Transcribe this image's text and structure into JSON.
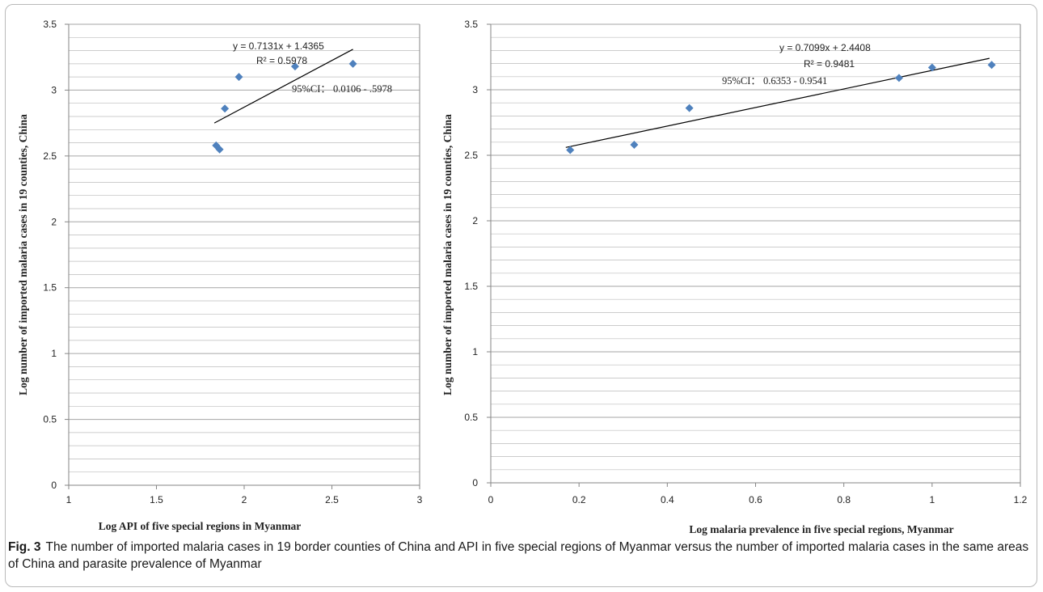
{
  "chart_data": [
    {
      "type": "scatter",
      "xlabel": "Log API of five special regions in Myanmar",
      "ylabel": "Log number of imported malaria cases in 19 counties, China",
      "xlim": [
        1,
        3
      ],
      "ylim": [
        0,
        3.5
      ],
      "x_ticks": [
        "1",
        "1.5",
        "2",
        "2.5",
        "3"
      ],
      "y_ticks": [
        "0",
        "0.5",
        "1",
        "1.5",
        "2",
        "2.5",
        "3",
        "3.5"
      ],
      "grid": true,
      "points": [
        {
          "x": 1.84,
          "y": 2.58
        },
        {
          "x": 1.86,
          "y": 2.55
        },
        {
          "x": 1.89,
          "y": 2.86
        },
        {
          "x": 1.97,
          "y": 3.1
        },
        {
          "x": 2.29,
          "y": 3.18
        },
        {
          "x": 2.62,
          "y": 3.2
        }
      ],
      "trendline": {
        "x": [
          1.83,
          2.62
        ],
        "y": [
          2.75,
          3.31
        ]
      },
      "annotations": [
        "y = 0.7131x + 1.4365",
        "R² = 0.5978",
        "95%CI：  0.0106 - .5978"
      ]
    },
    {
      "type": "scatter",
      "xlabel": "Log malaria prevalence in five special regions, Myanmar",
      "ylabel": "Log number of imported malaria cases in 19 counties, China",
      "xlim": [
        0,
        1.2
      ],
      "ylim": [
        0,
        3.5
      ],
      "x_ticks": [
        "0",
        "0.2",
        "0.4",
        "0.6",
        "0.8",
        "1",
        "1.2"
      ],
      "y_ticks": [
        "0",
        "0.5",
        "1",
        "1.5",
        "2",
        "2.5",
        "3",
        "3.5"
      ],
      "grid": true,
      "points": [
        {
          "x": 0.18,
          "y": 2.54
        },
        {
          "x": 0.325,
          "y": 2.58
        },
        {
          "x": 0.45,
          "y": 2.86
        },
        {
          "x": 0.925,
          "y": 3.09
        },
        {
          "x": 1.0,
          "y": 3.17
        },
        {
          "x": 1.135,
          "y": 3.19
        }
      ],
      "trendline": {
        "x": [
          0.17,
          1.13
        ],
        "y": [
          2.56,
          3.24
        ]
      },
      "annotations": [
        "y = 0.7099x + 2.4408",
        "R² = 0.9481",
        "95%CI：  0.6353 - 0.9541"
      ]
    }
  ],
  "caption": {
    "label": "Fig. 3",
    "text": "The number of imported malaria cases in 19 border counties of China and API in five special regions of Myanmar versus the number of imported malaria cases in the same areas of China and parasite prevalence of Myanmar"
  },
  "colors": {
    "marker": "#4f81bd",
    "grid": "#a6a6a6",
    "axis": "#868686",
    "trendline": "#000000"
  }
}
